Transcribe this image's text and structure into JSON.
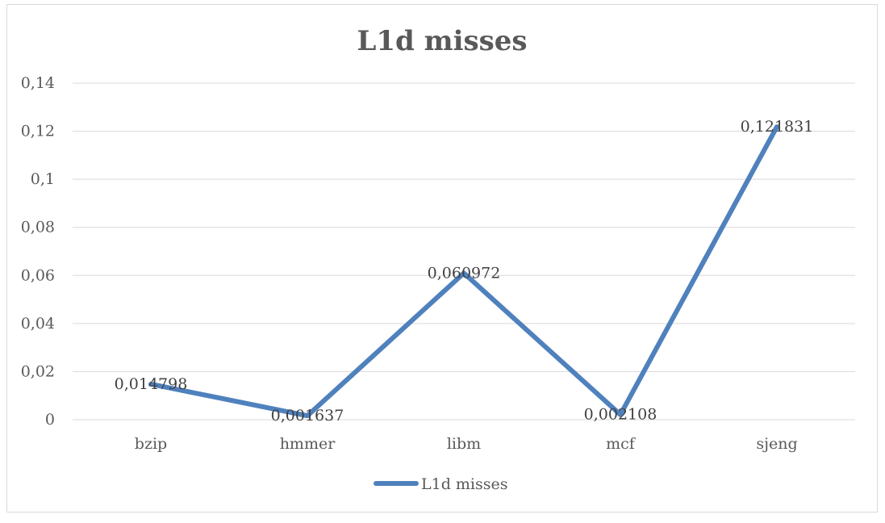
{
  "chart_data": {
    "type": "line",
    "title": "L1d misses",
    "xlabel": "",
    "ylabel": "",
    "categories": [
      "bzip",
      "hmmer",
      "libm",
      "mcf",
      "sjeng"
    ],
    "series": [
      {
        "name": "L1d misses",
        "values": [
          0.014798,
          0.001637,
          0.060972,
          0.002108,
          0.121831
        ],
        "labels": [
          "0,014798",
          "0,001637",
          "0,060972",
          "0,002108",
          "0,121831"
        ]
      }
    ],
    "ylim": [
      0,
      0.14
    ],
    "yticks": [
      0,
      0.02,
      0.04,
      0.06,
      0.08,
      0.1,
      0.12,
      0.14
    ],
    "ytick_labels": [
      "0",
      "0,02",
      "0,04",
      "0,06",
      "0,08",
      "0,1",
      "0,12",
      "0,14"
    ],
    "grid": true,
    "legend": "bottom",
    "colors": {
      "line": "#4f81bd",
      "grid": "#d9d9d9",
      "text": "#595959"
    }
  }
}
